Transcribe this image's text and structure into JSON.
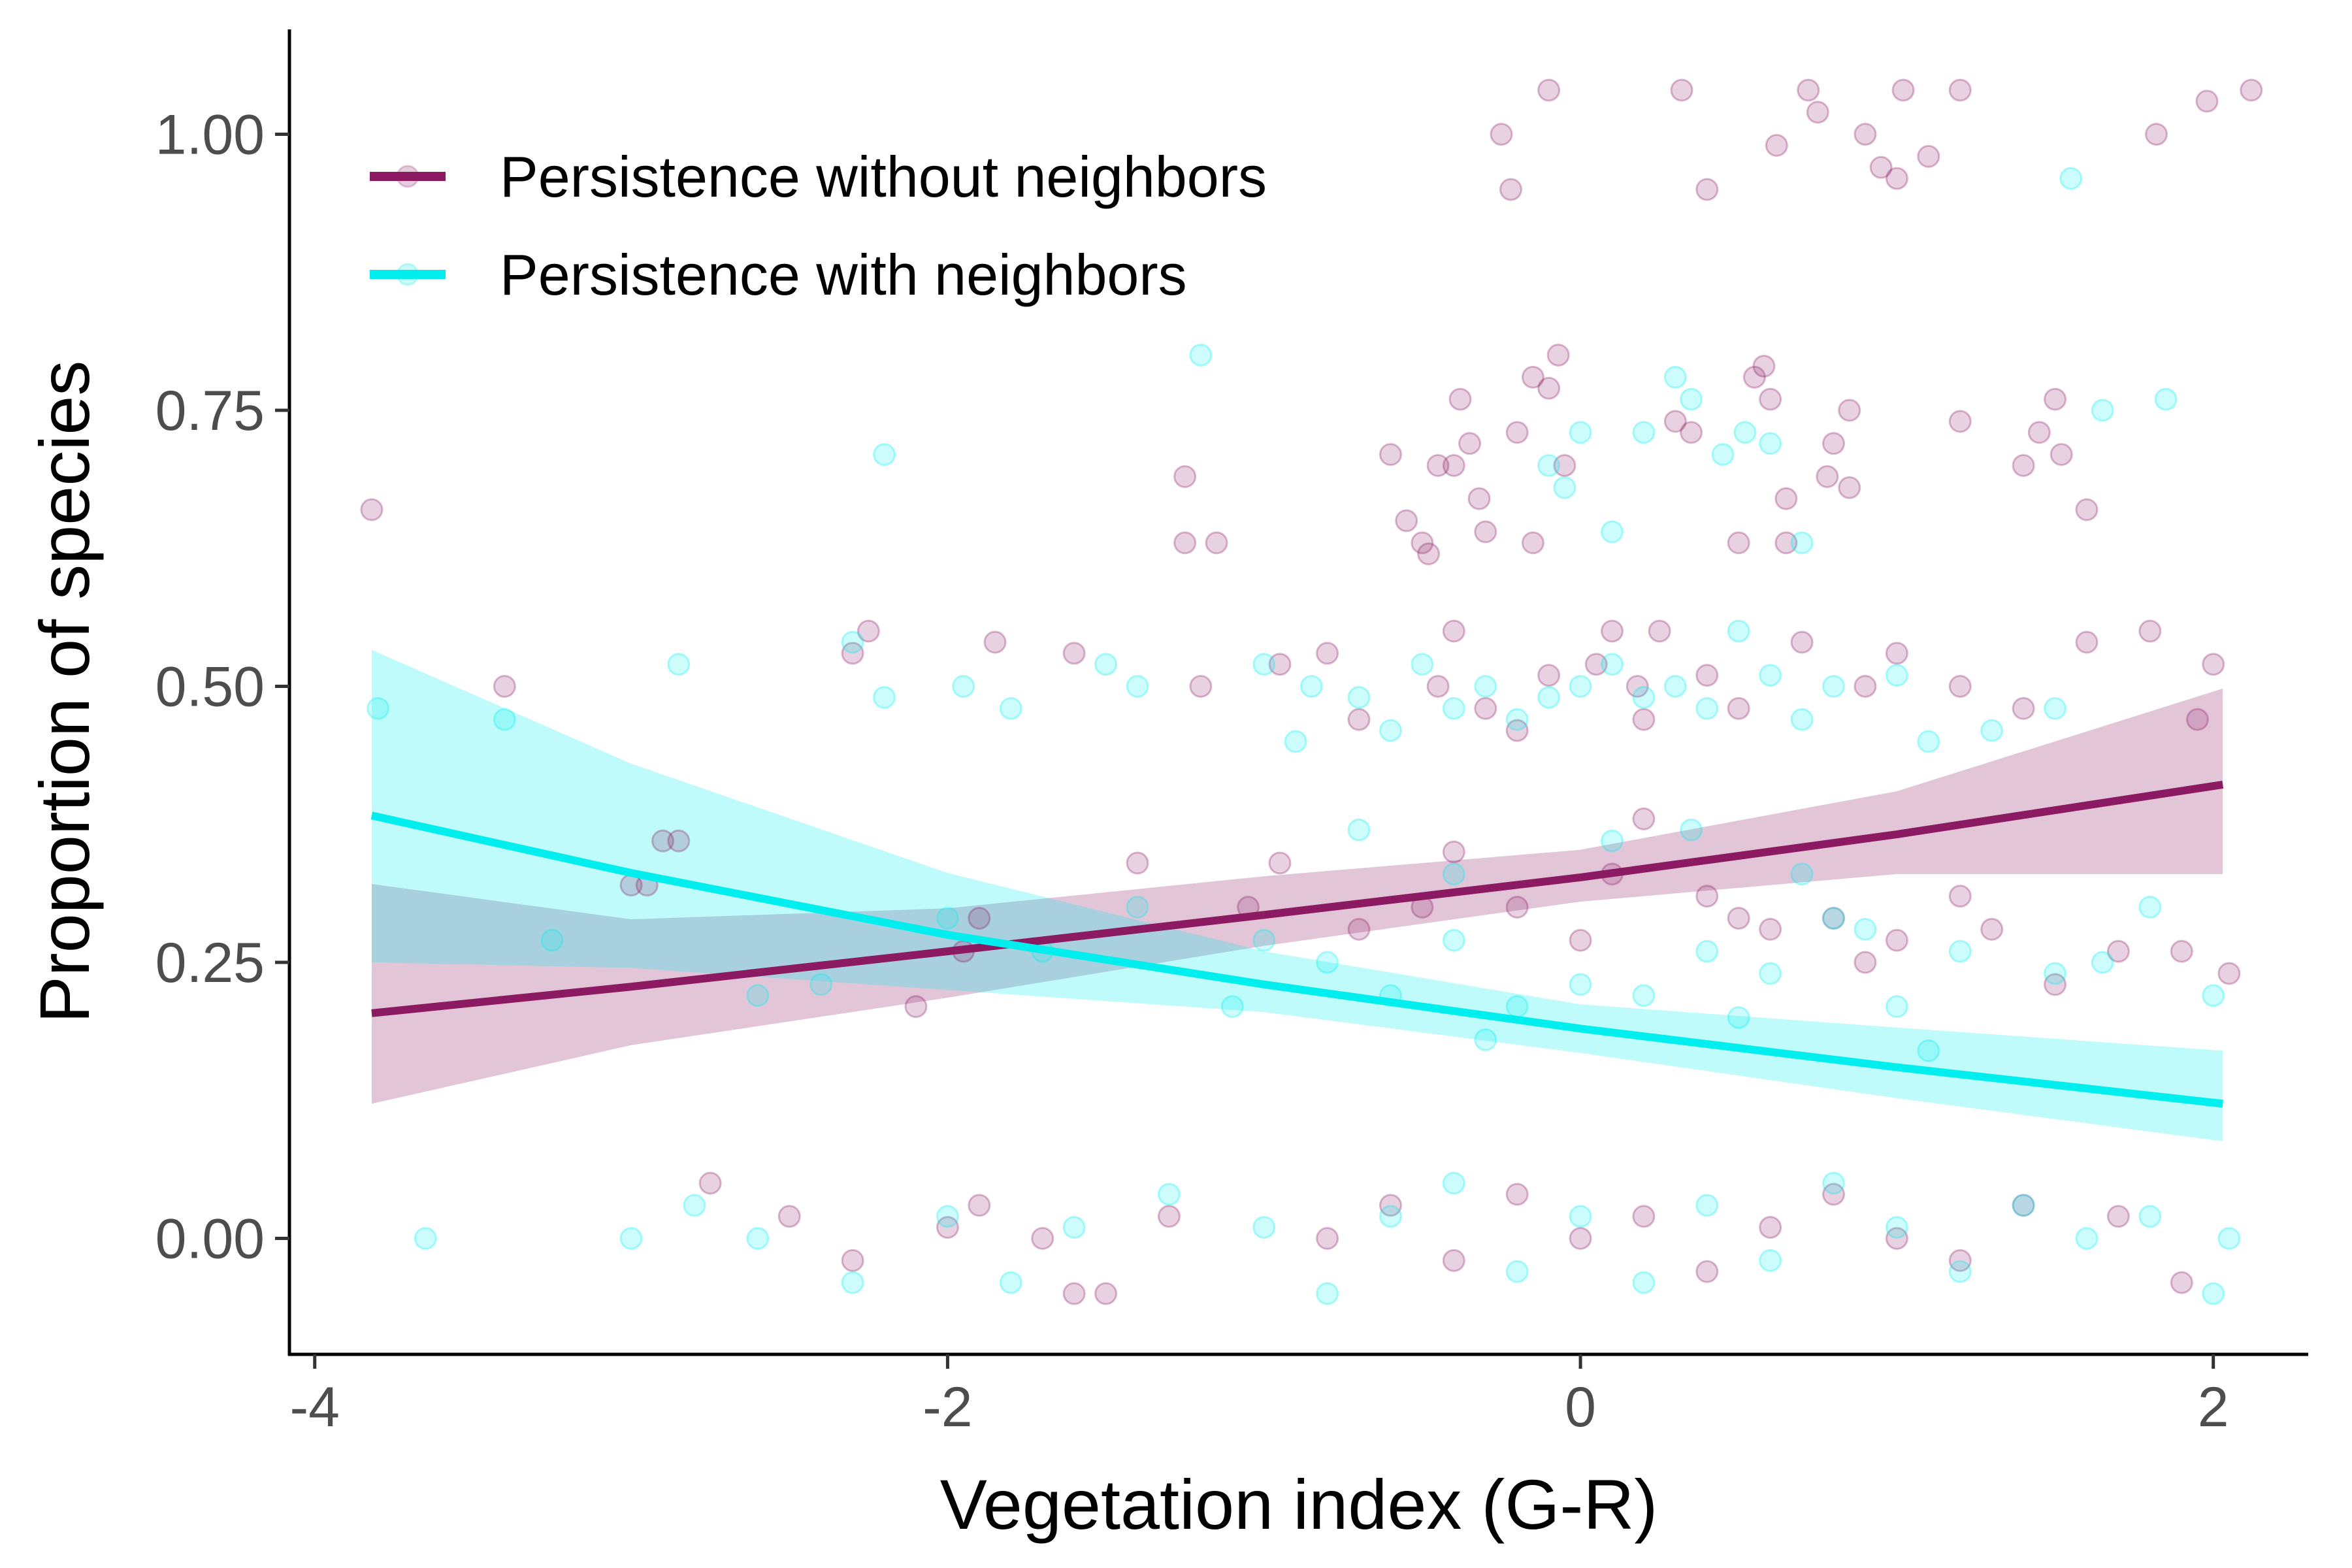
{
  "chart_data": {
    "type": "scatter",
    "title": "",
    "xlabel": "Vegetation index (G-R)",
    "ylabel": "Proportion of species",
    "xlim": [
      -4.08,
      2.3
    ],
    "ylim": [
      -0.105,
      1.095
    ],
    "x_ticks": [
      -4,
      -2,
      0,
      2
    ],
    "x_tick_labels": [
      "-4",
      "-2",
      "0",
      "2"
    ],
    "y_ticks": [
      0,
      0.25,
      0.5,
      0.75,
      1.0
    ],
    "y_tick_labels": [
      "0.00",
      "0.25",
      "0.50",
      "0.75",
      "1.00"
    ],
    "grid": false,
    "legend_position": "top-left",
    "series": [
      {
        "name": "Persistence without neighbors",
        "color": "#8B1A62",
        "fit": {
          "x": [
            -3.82,
            -3.0,
            -2.0,
            -1.0,
            0.0,
            1.0,
            2.03
          ],
          "y": [
            0.204,
            0.228,
            0.26,
            0.293,
            0.327,
            0.366,
            0.411
          ],
          "ci_lower": [
            0.122,
            0.175,
            0.218,
            0.265,
            0.305,
            0.33,
            0.33
          ],
          "ci_upper": [
            0.321,
            0.289,
            0.299,
            0.328,
            0.352,
            0.405,
            0.498
          ]
        },
        "points": [
          [
            -3.82,
            0.66
          ],
          [
            -3.4,
            0.5
          ],
          [
            -2.95,
            0.32
          ],
          [
            -2.85,
            0.36
          ],
          [
            -2.25,
            0.55
          ],
          [
            -2.3,
            0.53
          ],
          [
            -1.9,
            0.29
          ],
          [
            -1.95,
            0.26
          ],
          [
            -1.85,
            0.54
          ],
          [
            -1.6,
            0.53
          ],
          [
            -1.25,
            0.69
          ],
          [
            -1.25,
            0.63
          ],
          [
            -1.15,
            0.63
          ],
          [
            -1.2,
            0.5
          ],
          [
            -1.05,
            0.3
          ],
          [
            -0.95,
            0.34
          ],
          [
            -0.95,
            0.52
          ],
          [
            -0.8,
            0.53
          ],
          [
            -0.7,
            0.47
          ],
          [
            -0.6,
            0.71
          ],
          [
            -0.55,
            0.65
          ],
          [
            -0.5,
            0.63
          ],
          [
            -0.48,
            0.62
          ],
          [
            -0.45,
            0.7
          ],
          [
            -0.4,
            0.7
          ],
          [
            -0.35,
            0.72
          ],
          [
            -0.38,
            0.76
          ],
          [
            -0.32,
            0.67
          ],
          [
            -0.3,
            0.64
          ],
          [
            -0.2,
            0.73
          ],
          [
            -0.25,
            1.0
          ],
          [
            -0.22,
            0.95
          ],
          [
            -0.1,
            1.04
          ],
          [
            -0.15,
            0.78
          ],
          [
            -0.07,
            0.8
          ],
          [
            -0.1,
            0.77
          ],
          [
            -0.15,
            0.63
          ],
          [
            -0.05,
            0.7
          ],
          [
            -0.45,
            0.5
          ],
          [
            -0.4,
            0.55
          ],
          [
            -0.3,
            0.48
          ],
          [
            -0.2,
            0.46
          ],
          [
            -0.1,
            0.51
          ],
          [
            0.05,
            0.52
          ],
          [
            0.1,
            0.55
          ],
          [
            0.2,
            0.47
          ],
          [
            0.25,
            0.55
          ],
          [
            0.3,
            0.74
          ],
          [
            0.35,
            0.73
          ],
          [
            0.32,
            1.04
          ],
          [
            0.4,
            0.95
          ],
          [
            0.55,
            0.78
          ],
          [
            0.58,
            0.79
          ],
          [
            0.6,
            0.76
          ],
          [
            0.5,
            0.63
          ],
          [
            0.65,
            0.67
          ],
          [
            0.65,
            0.63
          ],
          [
            0.72,
            1.04
          ],
          [
            0.75,
            1.02
          ],
          [
            0.8,
            0.72
          ],
          [
            0.78,
            0.69
          ],
          [
            0.85,
            0.75
          ],
          [
            0.85,
            0.68
          ],
          [
            0.9,
            1.0
          ],
          [
            0.95,
            0.97
          ],
          [
            1.0,
            0.96
          ],
          [
            1.02,
            1.04
          ],
          [
            1.1,
            0.98
          ],
          [
            1.2,
            1.04
          ],
          [
            1.2,
            0.74
          ],
          [
            1.4,
            0.7
          ],
          [
            1.45,
            0.73
          ],
          [
            1.5,
            0.76
          ],
          [
            1.52,
            0.71
          ],
          [
            1.6,
            0.66
          ],
          [
            1.82,
            1.0
          ],
          [
            1.98,
            1.03
          ],
          [
            2.12,
            1.04
          ],
          [
            0.62,
            0.99
          ],
          [
            0.18,
            0.5
          ],
          [
            0.4,
            0.51
          ],
          [
            0.5,
            0.48
          ],
          [
            0.7,
            0.54
          ],
          [
            0.9,
            0.5
          ],
          [
            1.0,
            0.53
          ],
          [
            1.2,
            0.5
          ],
          [
            1.4,
            0.48
          ],
          [
            1.6,
            0.54
          ],
          [
            1.8,
            0.55
          ],
          [
            2.0,
            0.52
          ],
          [
            1.95,
            0.47
          ],
          [
            -3.0,
            0.32
          ],
          [
            -2.75,
            0.05
          ],
          [
            -2.5,
            0.02
          ],
          [
            -2.3,
            -0.02
          ],
          [
            -2.0,
            0.01
          ],
          [
            -1.9,
            0.03
          ],
          [
            -1.7,
            0.0
          ],
          [
            -1.6,
            -0.05
          ],
          [
            -1.5,
            -0.05
          ],
          [
            -1.3,
            0.02
          ],
          [
            -0.8,
            0.0
          ],
          [
            -0.6,
            0.03
          ],
          [
            -0.4,
            -0.02
          ],
          [
            -0.2,
            0.04
          ],
          [
            0.0,
            0.0
          ],
          [
            0.2,
            0.02
          ],
          [
            0.4,
            -0.03
          ],
          [
            0.6,
            0.01
          ],
          [
            0.8,
            0.04
          ],
          [
            1.0,
            0.0
          ],
          [
            1.2,
            -0.02
          ],
          [
            1.4,
            0.03
          ],
          [
            1.7,
            0.02
          ],
          [
            1.9,
            -0.04
          ],
          [
            -0.7,
            0.28
          ],
          [
            -0.5,
            0.3
          ],
          [
            -0.2,
            0.3
          ],
          [
            0.0,
            0.27
          ],
          [
            0.2,
            0.38
          ],
          [
            0.4,
            0.31
          ],
          [
            0.6,
            0.28
          ],
          [
            0.8,
            0.29
          ],
          [
            1.0,
            0.27
          ],
          [
            1.2,
            0.31
          ],
          [
            1.5,
            0.23
          ],
          [
            1.7,
            0.26
          ],
          [
            1.9,
            0.26
          ],
          [
            -0.4,
            0.35
          ],
          [
            0.1,
            0.33
          ],
          [
            0.5,
            0.29
          ],
          [
            0.9,
            0.25
          ],
          [
            1.3,
            0.28
          ],
          [
            -2.9,
            0.36
          ],
          [
            -2.1,
            0.21
          ],
          [
            -1.4,
            0.34
          ],
          [
            2.05,
            0.24
          ]
        ]
      },
      {
        "name": "Persistence with neighbors",
        "color": "#00EEEE",
        "fit": {
          "x": [
            -3.82,
            -3.0,
            -2.0,
            -1.0,
            0.0,
            1.0,
            2.03
          ],
          "y": [
            0.383,
            0.331,
            0.275,
            0.23,
            0.19,
            0.155,
            0.122
          ],
          "ci_lower": [
            0.25,
            0.245,
            0.225,
            0.205,
            0.168,
            0.127,
            0.088
          ],
          "ci_upper": [
            0.533,
            0.43,
            0.331,
            0.26,
            0.212,
            0.191,
            0.17
          ]
        },
        "points": [
          [
            -3.8,
            0.48
          ],
          [
            -3.4,
            0.47
          ],
          [
            -2.85,
            0.52
          ],
          [
            -2.3,
            0.54
          ],
          [
            -2.2,
            0.49
          ],
          [
            -2.2,
            0.71
          ],
          [
            -1.95,
            0.5
          ],
          [
            -1.8,
            0.48
          ],
          [
            -1.5,
            0.52
          ],
          [
            -1.4,
            0.5
          ],
          [
            -1.2,
            0.8
          ],
          [
            -1.0,
            0.52
          ],
          [
            -0.9,
            0.45
          ],
          [
            -0.85,
            0.5
          ],
          [
            -0.7,
            0.49
          ],
          [
            -0.6,
            0.46
          ],
          [
            -0.5,
            0.52
          ],
          [
            -0.4,
            0.48
          ],
          [
            -0.3,
            0.5
          ],
          [
            -0.2,
            0.47
          ],
          [
            -0.1,
            0.49
          ],
          [
            0.0,
            0.5
          ],
          [
            0.1,
            0.52
          ],
          [
            0.2,
            0.49
          ],
          [
            0.3,
            0.5
          ],
          [
            0.4,
            0.48
          ],
          [
            0.5,
            0.55
          ],
          [
            0.6,
            0.51
          ],
          [
            0.7,
            0.47
          ],
          [
            0.8,
            0.5
          ],
          [
            1.0,
            0.51
          ],
          [
            1.1,
            0.45
          ],
          [
            1.3,
            0.46
          ],
          [
            1.5,
            0.48
          ],
          [
            1.55,
            0.96
          ],
          [
            1.65,
            0.75
          ],
          [
            1.85,
            0.76
          ],
          [
            -0.1,
            0.7
          ],
          [
            0.0,
            0.73
          ],
          [
            0.1,
            0.64
          ],
          [
            0.2,
            0.73
          ],
          [
            0.3,
            0.78
          ],
          [
            0.35,
            0.76
          ],
          [
            0.45,
            0.71
          ],
          [
            0.6,
            0.72
          ],
          [
            0.7,
            0.63
          ],
          [
            -0.05,
            0.68
          ],
          [
            0.52,
            0.73
          ],
          [
            -3.65,
            0.0
          ],
          [
            -3.0,
            0.0
          ],
          [
            -2.8,
            0.03
          ],
          [
            -2.6,
            0.0
          ],
          [
            -2.3,
            -0.04
          ],
          [
            -2.0,
            0.02
          ],
          [
            -1.8,
            -0.04
          ],
          [
            -1.6,
            0.01
          ],
          [
            -1.3,
            0.04
          ],
          [
            -1.0,
            0.01
          ],
          [
            -0.8,
            -0.05
          ],
          [
            -0.6,
            0.02
          ],
          [
            -0.4,
            0.05
          ],
          [
            -0.2,
            -0.03
          ],
          [
            0.0,
            0.02
          ],
          [
            0.2,
            -0.04
          ],
          [
            0.4,
            0.03
          ],
          [
            0.6,
            -0.02
          ],
          [
            0.8,
            0.05
          ],
          [
            1.0,
            0.01
          ],
          [
            1.2,
            -0.03
          ],
          [
            1.4,
            0.03
          ],
          [
            1.6,
            0.0
          ],
          [
            1.8,
            0.02
          ],
          [
            2.0,
            -0.05
          ],
          [
            2.05,
            0.0
          ],
          [
            -0.8,
            0.25
          ],
          [
            -0.6,
            0.22
          ],
          [
            -0.4,
            0.27
          ],
          [
            -0.2,
            0.21
          ],
          [
            0.0,
            0.23
          ],
          [
            0.2,
            0.22
          ],
          [
            0.4,
            0.26
          ],
          [
            0.6,
            0.24
          ],
          [
            0.8,
            0.29
          ],
          [
            1.0,
            0.21
          ],
          [
            1.2,
            0.26
          ],
          [
            1.5,
            0.24
          ],
          [
            1.8,
            0.3
          ],
          [
            2.0,
            0.22
          ],
          [
            -1.4,
            0.3
          ],
          [
            -1.0,
            0.27
          ],
          [
            -0.7,
            0.37
          ],
          [
            -0.4,
            0.33
          ],
          [
            0.1,
            0.36
          ],
          [
            0.35,
            0.37
          ],
          [
            0.7,
            0.33
          ],
          [
            -2.0,
            0.29
          ],
          [
            -2.4,
            0.23
          ],
          [
            -2.6,
            0.22
          ],
          [
            -1.1,
            0.21
          ],
          [
            0.5,
            0.2
          ],
          [
            1.1,
            0.17
          ],
          [
            1.65,
            0.25
          ],
          [
            -3.25,
            0.27
          ],
          [
            -1.7,
            0.26
          ],
          [
            -0.3,
            0.18
          ],
          [
            0.9,
            0.28
          ]
        ]
      }
    ]
  }
}
